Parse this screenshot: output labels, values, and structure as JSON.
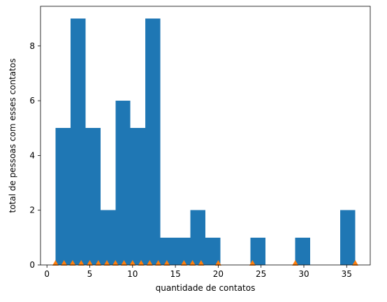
{
  "chart_data": {
    "type": "bar",
    "title": "",
    "xlabel": "quantidade de contatos",
    "ylabel": "total de pessoas com esses contatos",
    "xlim": [
      -0.75,
      37.75
    ],
    "ylim": [
      0,
      9.45
    ],
    "xticks": [
      0,
      5,
      10,
      15,
      20,
      25,
      30,
      35
    ],
    "yticks": [
      0,
      2,
      4,
      6,
      8
    ],
    "grid": false,
    "legend": "none",
    "bin_edges": [
      1,
      2.75,
      4.5,
      6.25,
      8,
      9.75,
      11.5,
      13.25,
      15,
      16.75,
      18.5,
      20.25,
      22,
      23.75,
      25.5,
      27.25,
      29,
      30.75,
      32.5,
      34.25,
      36
    ],
    "series": [
      {
        "type": "histogram",
        "color": "#1f77b4",
        "values": [
          5,
          9,
          5,
          2,
          6,
          5,
          9,
          1,
          1,
          2,
          1,
          0,
          0,
          1,
          0,
          0,
          1,
          0,
          0,
          2
        ]
      },
      {
        "type": "scatter",
        "marker": "triangle-up",
        "color": "#ff7f0e",
        "x": [
          1,
          2,
          3,
          4,
          5,
          6,
          7,
          8,
          9,
          10,
          11,
          12,
          13,
          14,
          16,
          17,
          18,
          20,
          24,
          29,
          36
        ],
        "y": [
          0,
          0,
          0,
          0,
          0,
          0,
          0,
          0,
          0,
          0,
          0,
          0,
          0,
          0,
          0,
          0,
          0,
          0,
          0,
          0,
          0
        ]
      }
    ]
  }
}
